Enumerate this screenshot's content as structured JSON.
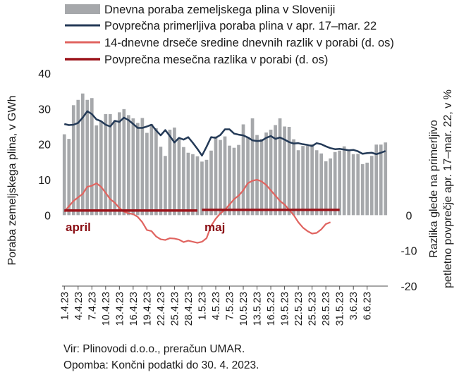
{
  "chart_data": {
    "type": "bar",
    "legend_position": "top",
    "grid": false,
    "colors": {
      "daily": "#a6a8ab",
      "avg5y": "#243a57",
      "diff14": "#e06460",
      "monthly": "#9b1219",
      "annotation": "#8b0f15"
    },
    "legend": [
      "Dnevna poraba zemeljskega plina v Sloveniji",
      "Povprečna primerljiva poraba plina v apr. 17–mar. 22",
      "14-dnevne drseče sredine dnevnih razlik v porabi (d. os)",
      "Povprečna mesečna razlika v porabi (d. os)"
    ],
    "ylabel_left": "Poraba zemeljskega plina, v GWh",
    "ylabel_right": "Razlika glede na primerljivo petletno povprečje apr. 17–mar. 22, v %",
    "yticks_left": [
      0,
      10,
      20,
      30,
      40
    ],
    "yticks_right": [
      0,
      -10,
      -20
    ],
    "ylim_left": [
      -20,
      40
    ],
    "ylim_right": [
      -20,
      40
    ],
    "x_categories": [
      "1.4.23",
      "4.4.23",
      "7.4.23",
      "10.4.23",
      "13.4.23",
      "16.4.23",
      "19.4.23",
      "22.4.23",
      "25.4.23",
      "28.4.23",
      "1.5.23",
      "4.5.23",
      "7.5.23",
      "10.5.23",
      "13.5.23",
      "16.5.23",
      "19.5.23",
      "22.5.23",
      "25.5.23",
      "28.5.23",
      "31.5.23",
      "3.6.23",
      "6.6.23"
    ],
    "daily_series": {
      "name": "Dnevna poraba zemeljskega plina v Sloveniji",
      "values": [
        22.8,
        21.5,
        31,
        32.5,
        34.3,
        32.5,
        33,
        25.3,
        26.5,
        28.5,
        28.5,
        26.7,
        29,
        29.9,
        28.2,
        27.3,
        26,
        27.4,
        23.2,
        25.7,
        24.5,
        19.3,
        16.7,
        24.1,
        24.7,
        21.8,
        19.2,
        17.6,
        17.2,
        16.6,
        15.1,
        15.6,
        18.2,
        22.2,
        21.2,
        22.2,
        19.6,
        19,
        19.8,
        25.6,
        22.1,
        27.3,
        22.6,
        21.5,
        23.3,
        24.1,
        25.4,
        27.3,
        25,
        24.9,
        21.4,
        18.3,
        19.5,
        19.6,
        20,
        18.3,
        17.4,
        15.2,
        16,
        17.8,
        18.2,
        19.4,
        18.3,
        17.2,
        17.3,
        14.4,
        14.8,
        16.7,
        19.9,
        19.9,
        20.5
      ]
    },
    "avg5y_series": {
      "name": "Povprečna primerljiva poraba plina v apr. 17–mar. 22",
      "values": [
        25.7,
        25.4,
        25.5,
        26,
        27.5,
        29.3,
        28.5,
        27,
        26.5,
        25.5,
        25,
        26.6,
        26.3,
        27.5,
        26.8,
        25.7,
        24.6,
        24.6,
        25,
        25.5,
        23.9,
        22.5,
        24,
        22.3,
        20.5,
        21.8,
        21.3,
        22,
        20.4,
        18.7,
        16.8,
        19.3,
        22,
        21.8,
        22.6,
        24.2,
        24.2,
        23,
        22.7,
        22.5,
        21.9,
        21.1,
        20.9,
        21,
        21.8,
        22.3,
        21.5,
        21.9,
        21.3,
        20.6,
        20.2,
        20.3,
        20,
        19.8,
        19.5,
        20.3,
        20,
        19.4,
        18.9,
        18.6,
        18.7,
        18.5,
        18.3,
        18.4,
        18,
        17.3,
        17.5,
        17.6,
        17.2,
        17.6,
        18.1
      ]
    },
    "diff14_series": {
      "name": "14-dnevne drseče sredine dnevnih razlik v porabi (d. os)",
      "values": [
        1,
        2.5,
        4,
        5,
        6,
        8,
        8.3,
        9,
        8,
        6.3,
        4.5,
        3.5,
        2,
        1,
        0.5,
        0.3,
        -0.5,
        -2,
        -4.2,
        -4.5,
        -6,
        -6.8,
        -7,
        -6.5,
        -6.6,
        -6.9,
        -7.6,
        -7.2,
        -7.5,
        -7.8,
        -7.5,
        -6.5,
        -3,
        -1,
        0.5,
        1.5,
        3,
        4.5,
        5.5,
        7,
        9,
        9.7,
        10,
        9.5,
        8.5,
        7,
        5.5,
        4,
        3,
        1.5,
        0,
        -2,
        -3.5,
        -4.5,
        -5.2,
        -5,
        -4,
        -2.5,
        -2
      ]
    },
    "monthly_series": {
      "name": "Povprečna mesečna razlika v porabi (d. os)",
      "segments": [
        {
          "label": "april",
          "start_day": 0,
          "end_day": 29,
          "value": 1.3
        },
        {
          "label": "maj",
          "start_day": 30,
          "end_day": 60,
          "value": 1.5
        }
      ]
    },
    "source": "Vir: Plinovodi d.o.o., preračun UMAR.",
    "note": "Opomba: Končni podatki do 30. 4. 2023."
  }
}
